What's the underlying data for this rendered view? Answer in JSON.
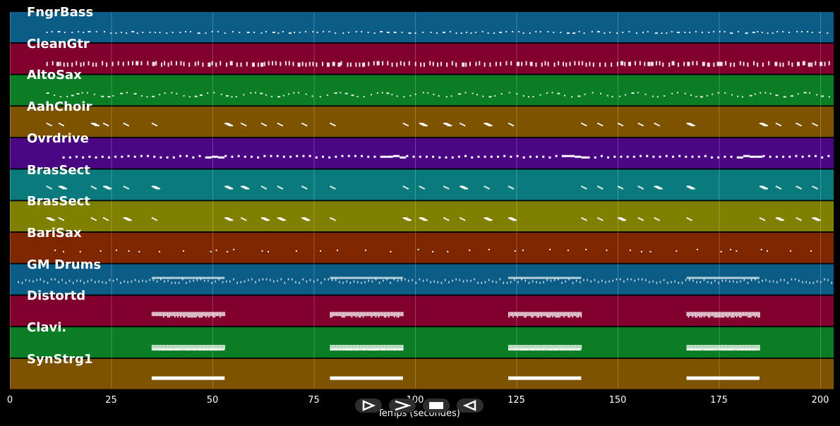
{
  "tracks": [
    {
      "name": "FngrBass",
      "color": "#0b5c87",
      "pattern": "dots"
    },
    {
      "name": "CleanGtr",
      "color": "#800030",
      "pattern": "dense-dashes"
    },
    {
      "name": "AltoSax",
      "color": "#0a7d25",
      "pattern": "wavy"
    },
    {
      "name": "AahChoir",
      "color": "#7e5300",
      "pattern": "clusters"
    },
    {
      "name": "Ovrdrive",
      "color": "#4b0684",
      "pattern": "long-runs"
    },
    {
      "name": "BrasSect",
      "color": "#0a7b7c",
      "pattern": "clusters"
    },
    {
      "name": "BrasSect",
      "color": "#7f7f00",
      "pattern": "clusters"
    },
    {
      "name": "BariSax",
      "color": "#7e2600",
      "pattern": "sparse"
    },
    {
      "name": "GM Drums",
      "color": "#0b5c87",
      "pattern": "drums"
    },
    {
      "name": "Distortd",
      "color": "#800030",
      "pattern": "blocks"
    },
    {
      "name": "Clavi.",
      "color": "#0a7d25",
      "pattern": "blocks"
    },
    {
      "name": "SynStrg1",
      "color": "#7e5300",
      "pattern": "bars"
    }
  ],
  "x_axis": {
    "title": "Temps (secondes)",
    "ticks": [
      "0",
      "25",
      "50",
      "75",
      "100",
      "125",
      "150",
      "175",
      "200"
    ]
  },
  "controls": [
    {
      "name": "play-icon",
      "symbol": "play"
    },
    {
      "name": "fast-forward-icon",
      "symbol": "forward"
    },
    {
      "name": "stop-icon",
      "symbol": "stop"
    },
    {
      "name": "rewind-icon",
      "symbol": "rewind"
    }
  ],
  "colors": {
    "background": "#000000",
    "note": "#ffffff",
    "grid": "#888888"
  }
}
